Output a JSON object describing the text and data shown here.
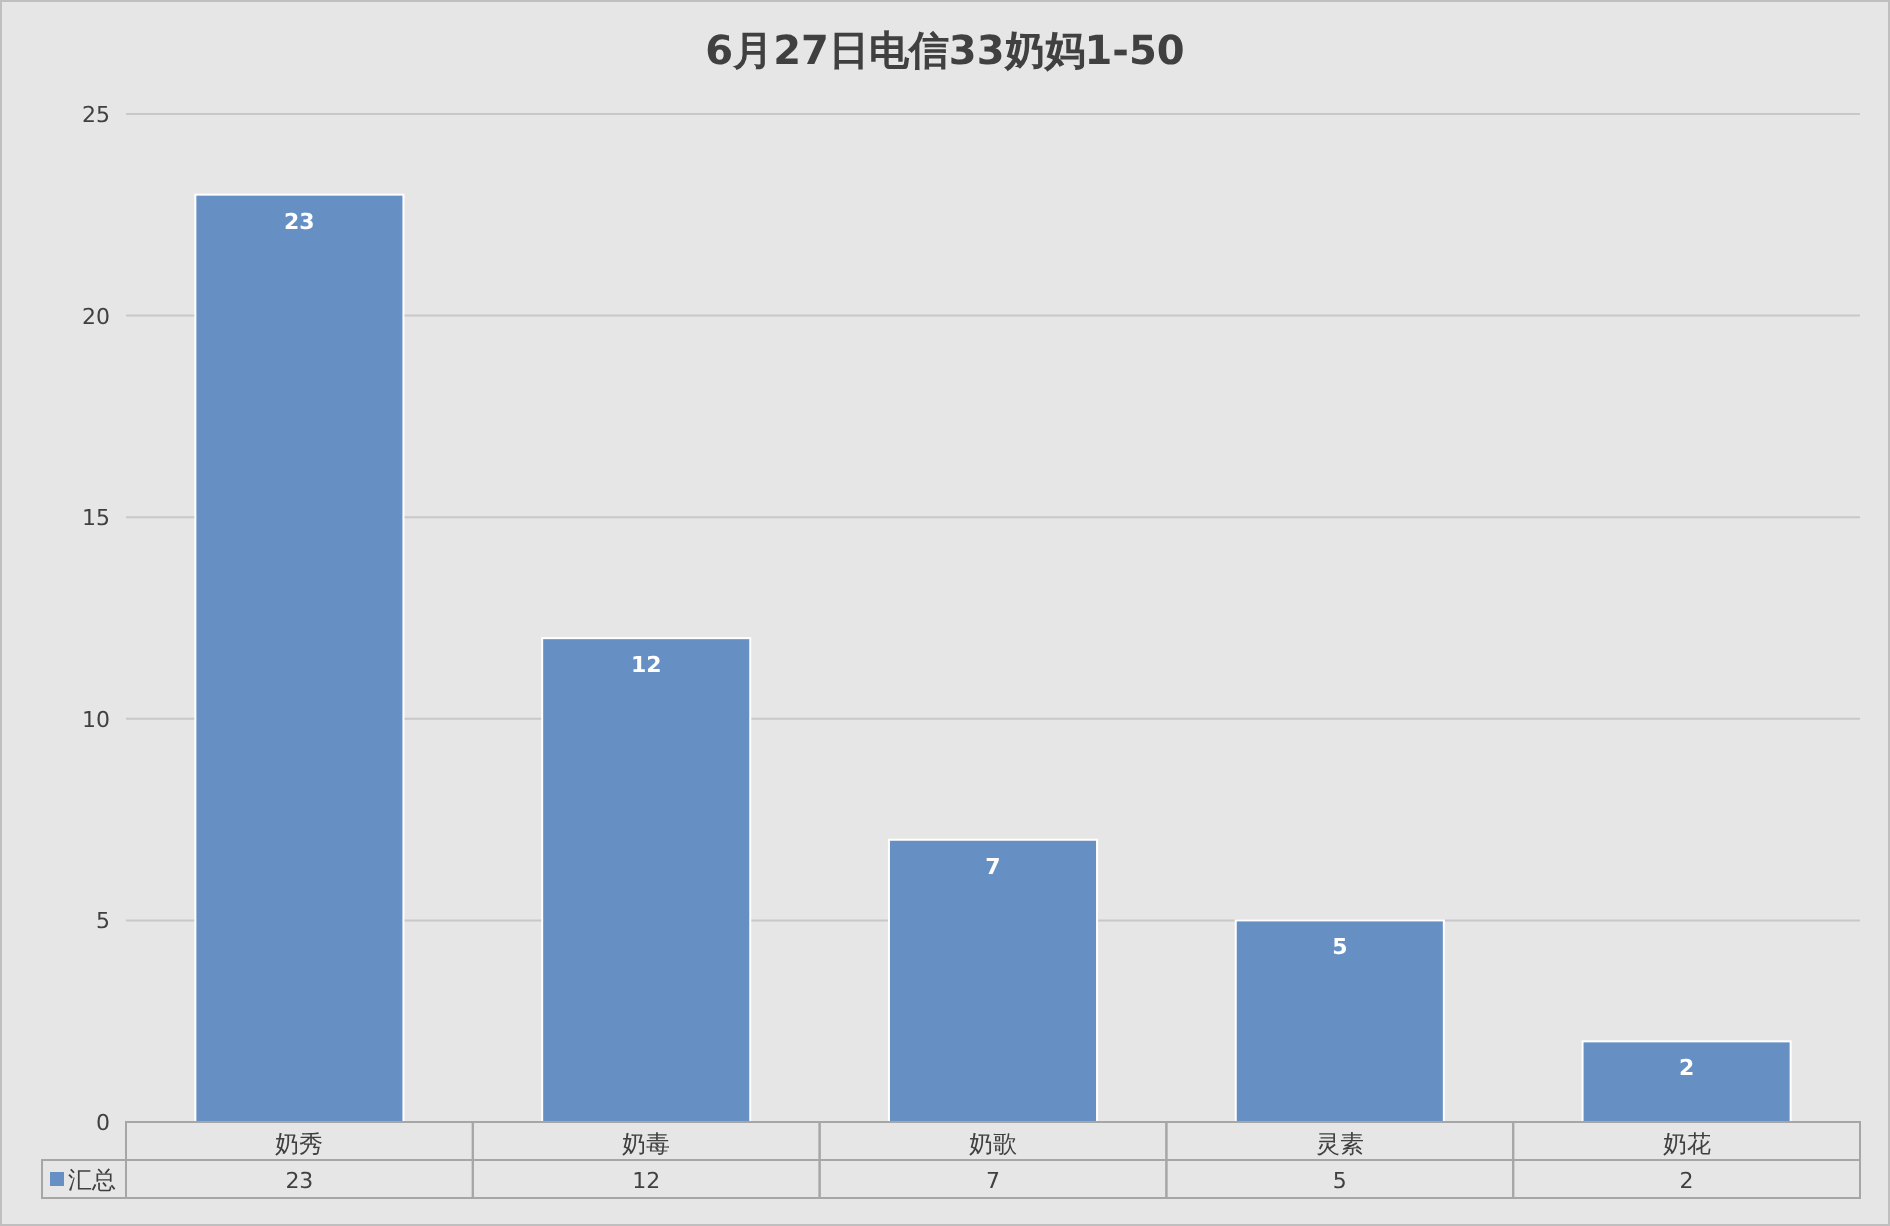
{
  "chart_data": {
    "type": "bar",
    "title": "6月27日电信33奶妈1-50",
    "categories": [
      "奶秀",
      "奶毒",
      "奶歌",
      "灵素",
      "奶花"
    ],
    "series": [
      {
        "name": "汇总",
        "color": "#6690c4",
        "values": [
          23,
          12,
          7,
          5,
          2
        ],
        "value_labels": [
          "23",
          "12",
          "7",
          "5",
          "2"
        ]
      }
    ],
    "ylim": [
      0,
      25
    ],
    "yticks": [
      0,
      5,
      10,
      15,
      20,
      25
    ],
    "grid": "y",
    "legend": "bottom",
    "annotations": [
      "23",
      "12",
      "7",
      "5",
      "2"
    ]
  }
}
